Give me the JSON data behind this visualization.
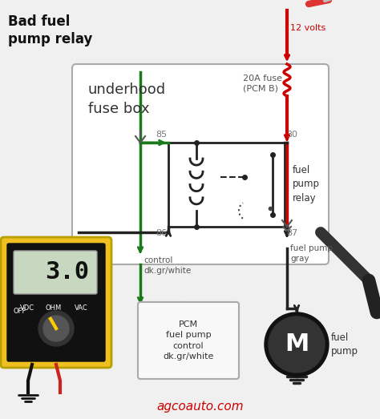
{
  "title": "Bad fuel\npump relay",
  "fuse_box_label": "underhood\nfuse box",
  "fuse_label": "20A fuse\n(PCM B)",
  "relay_label": "fuel\npump\nrelay",
  "pin_85": "85",
  "pin_86": "86",
  "pin_30": "30",
  "pin_87": "87",
  "voltage_label": "12 volts",
  "control_label": "control\ndk.gr/white",
  "fuel_pump_wire_label": "fuel pump\ngray",
  "pcm_label": "PCM\nfuel pump\ncontrol\ndk.gr/white",
  "fuel_pump_label": "fuel\npump",
  "multimeter_reading": "3.0",
  "website": "agcoauto.com",
  "bg_color": "#f0f0f0",
  "fuse_box_bg": "#f5f5f5",
  "fuse_box_border": "#aaaaaa",
  "relay_box_border": "#222222",
  "wire_red": "#cc0000",
  "wire_green": "#1a7a1a",
  "wire_dark": "#222222",
  "wire_gray": "#888888",
  "multimeter_yellow": "#f0c020",
  "multimeter_black": "#111111",
  "multimeter_screen_bg": "#c8d8c0",
  "title_color": "#111111",
  "website_color": "#cc0000",
  "label_color": "#555555",
  "fig_bg": "#f0f0f0"
}
